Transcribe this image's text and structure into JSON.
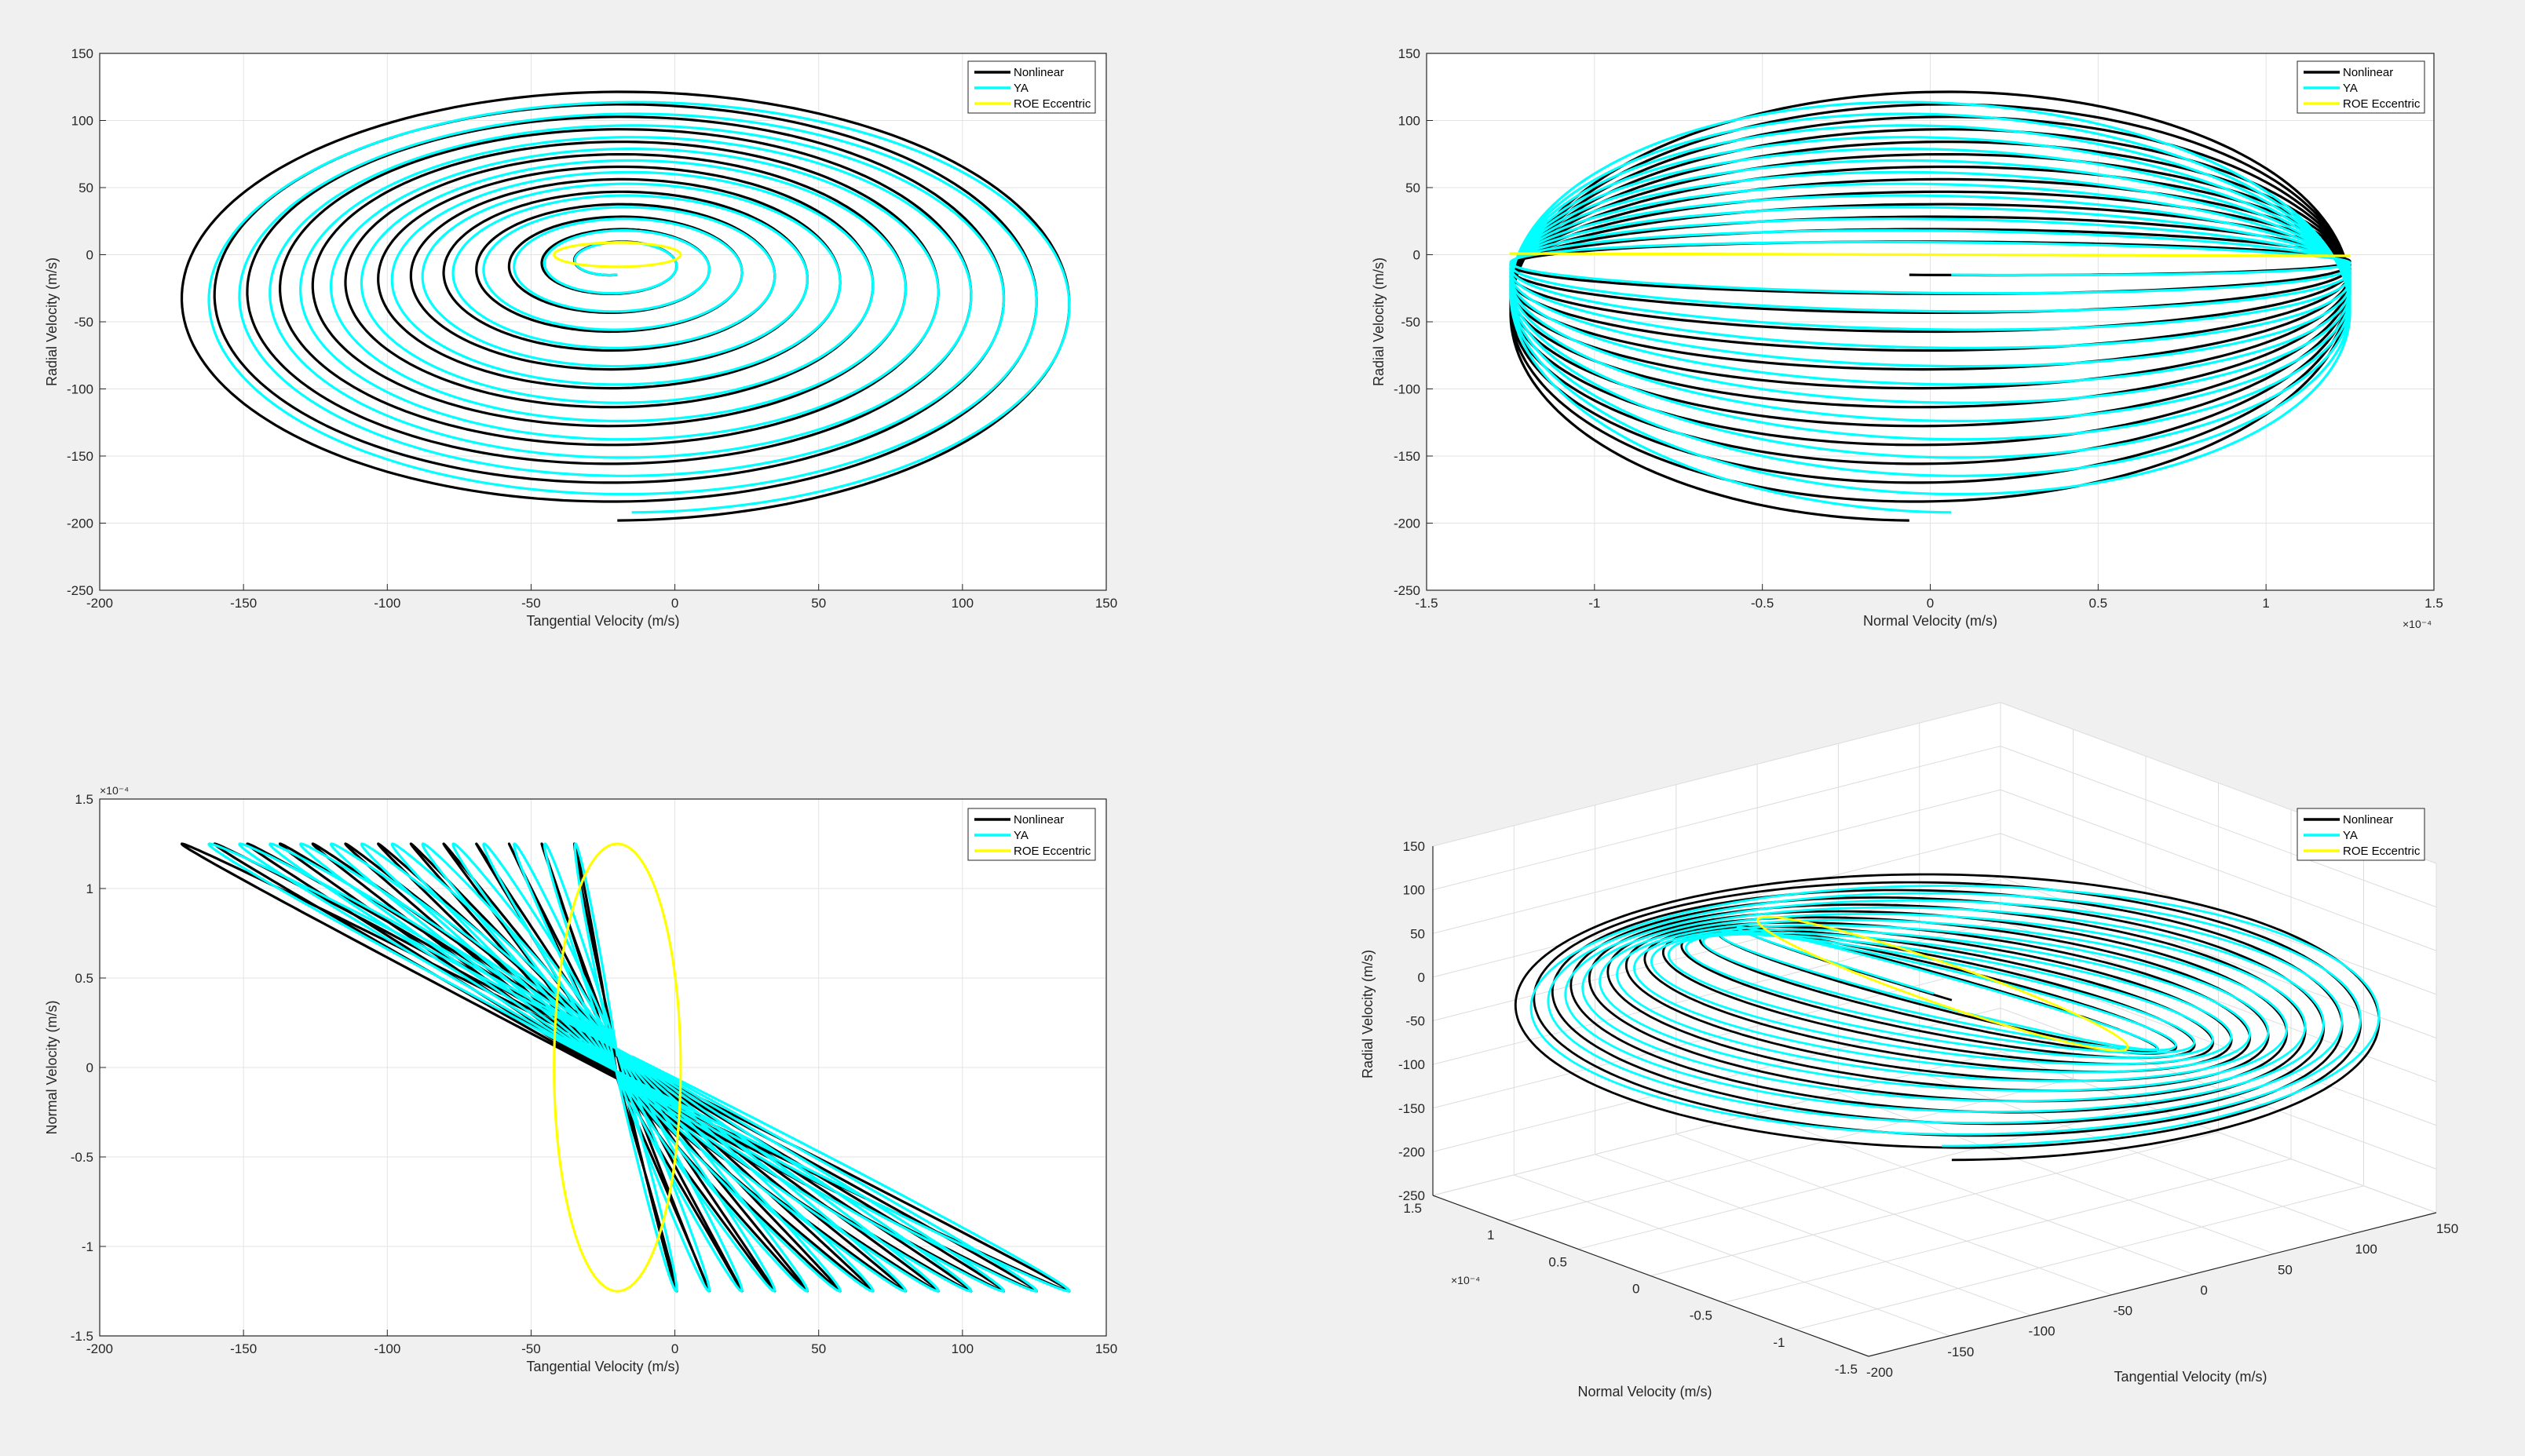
{
  "figure": {
    "background": "#f0f0f0"
  },
  "colors": {
    "Nonlinear": "#000000",
    "YA": "#00ffff",
    "ROE Eccentric": "#ffff00"
  },
  "chart_data": [
    {
      "type": "line",
      "xlabel": "Tangential Velocity (m/s)",
      "ylabel": "Radial Velocity (m/s)",
      "xlim": [
        -200,
        150
      ],
      "ylim": [
        -250,
        150
      ],
      "xticks": [
        -200,
        -150,
        -100,
        -50,
        0,
        50,
        100,
        150
      ],
      "yticks": [
        -250,
        -200,
        -150,
        -100,
        -50,
        0,
        50,
        100,
        150
      ],
      "xtick_labels": [
        "-200",
        "-150",
        "-100",
        "-50",
        "0",
        "50",
        "100",
        "150"
      ],
      "ytick_labels": [
        "-250",
        "-200",
        "-150",
        "-100",
        "-50",
        "0",
        "50",
        "100",
        "150"
      ],
      "grid": true,
      "legend_position": "top-right",
      "series": [
        {
          "name": "Nonlinear",
          "color": "#000000"
        },
        {
          "name": "YA",
          "color": "#00ffff"
        },
        {
          "name": "ROE Eccentric",
          "color": "#ffff00"
        }
      ],
      "trajectory_params": {
        "Nonlinear": {
          "center_x_start": -20,
          "center_x_end": -20,
          "a_start": 12,
          "a_end": 160,
          "center_y_start": -5,
          "center_y_end": -36,
          "b_start": 10,
          "b_end": 162,
          "turns": 13
        },
        "YA": {
          "center_x_start": -20,
          "center_x_end": -15,
          "a_start": 12,
          "a_end": 155,
          "center_y_start": -5,
          "center_y_end": -37,
          "b_start": 10,
          "b_end": 155,
          "turns": 13
        },
        "ROE Eccentric": {
          "center_x": -20,
          "center_y": 0,
          "a": 22,
          "b": 9
        }
      }
    },
    {
      "type": "line",
      "xlabel": "Normal Velocity (m/s)",
      "ylabel": "Radial Velocity (m/s)",
      "xlim": [
        -1.5,
        1.5
      ],
      "ylim": [
        -250,
        150
      ],
      "xticks": [
        -1.5,
        -1,
        -0.5,
        0,
        0.5,
        1,
        1.5
      ],
      "yticks": [
        -250,
        -200,
        -150,
        -100,
        -50,
        0,
        50,
        100,
        150
      ],
      "xtick_labels": [
        "-1.5",
        "-1",
        "-0.5",
        "0",
        "0.5",
        "1",
        "1.5"
      ],
      "ytick_labels": [
        "-250",
        "-200",
        "-150",
        "-100",
        "-50",
        "0",
        "50",
        "100",
        "150"
      ],
      "x_exponent": "×10⁻⁴",
      "grid": true,
      "legend_position": "top-right",
      "series": [
        {
          "name": "Nonlinear",
          "color": "#000000"
        },
        {
          "name": "YA",
          "color": "#00ffff"
        },
        {
          "name": "ROE Eccentric",
          "color": "#ffff00"
        }
      ],
      "trajectory_params": {
        "normal_amplitude": 1.25,
        "turns": 13
      }
    },
    {
      "type": "line",
      "xlabel": "Tangential Velocity (m/s)",
      "ylabel": "Normal Velocity (m/s)",
      "xlim": [
        -200,
        150
      ],
      "ylim": [
        -1.5,
        1.5
      ],
      "xticks": [
        -200,
        -150,
        -100,
        -50,
        0,
        50,
        100,
        150
      ],
      "yticks": [
        -1.5,
        -1,
        -0.5,
        0,
        0.5,
        1,
        1.5
      ],
      "xtick_labels": [
        "-200",
        "-150",
        "-100",
        "-50",
        "0",
        "50",
        "100",
        "150"
      ],
      "ytick_labels": [
        "-1.5",
        "-1",
        "-0.5",
        "0",
        "0.5",
        "1",
        "1.5"
      ],
      "y_exponent": "×10⁻⁴",
      "grid": true,
      "legend_position": "top-right",
      "series": [
        {
          "name": "Nonlinear",
          "color": "#000000"
        },
        {
          "name": "YA",
          "color": "#00ffff"
        },
        {
          "name": "ROE Eccentric",
          "color": "#ffff00"
        }
      ]
    },
    {
      "type": "line",
      "projection": "3d",
      "xlabel": "Tangential Velocity (m/s)",
      "ylabel": "Normal Velocity (m/s)",
      "zlabel": "Radial Velocity (m/s)",
      "xlim": [
        -200,
        150
      ],
      "ylim": [
        -1.5,
        1.5
      ],
      "zlim": [
        -250,
        150
      ],
      "xticks": [
        -200,
        -150,
        -100,
        -50,
        0,
        50,
        100,
        150
      ],
      "yticks": [
        -1.5,
        -1,
        -0.5,
        0,
        0.5,
        1,
        1.5
      ],
      "zticks": [
        -250,
        -200,
        -150,
        -100,
        -50,
        0,
        50,
        100,
        150
      ],
      "xtick_labels": [
        "-200",
        "-150",
        "-100",
        "-50",
        "0",
        "50",
        "100",
        "150"
      ],
      "ytick_labels": [
        "-1.5",
        "-1",
        "-0.5",
        "0",
        "0.5",
        "1",
        "1.5"
      ],
      "ztick_labels": [
        "-250",
        "-200",
        "-150",
        "-100",
        "-50",
        "0",
        "50",
        "100",
        "150"
      ],
      "y_exponent": "×10⁻⁴",
      "grid": true,
      "legend_position": "top-right",
      "series": [
        {
          "name": "Nonlinear",
          "color": "#000000"
        },
        {
          "name": "YA",
          "color": "#00ffff"
        },
        {
          "name": "ROE Eccentric",
          "color": "#ffff00"
        }
      ]
    }
  ]
}
